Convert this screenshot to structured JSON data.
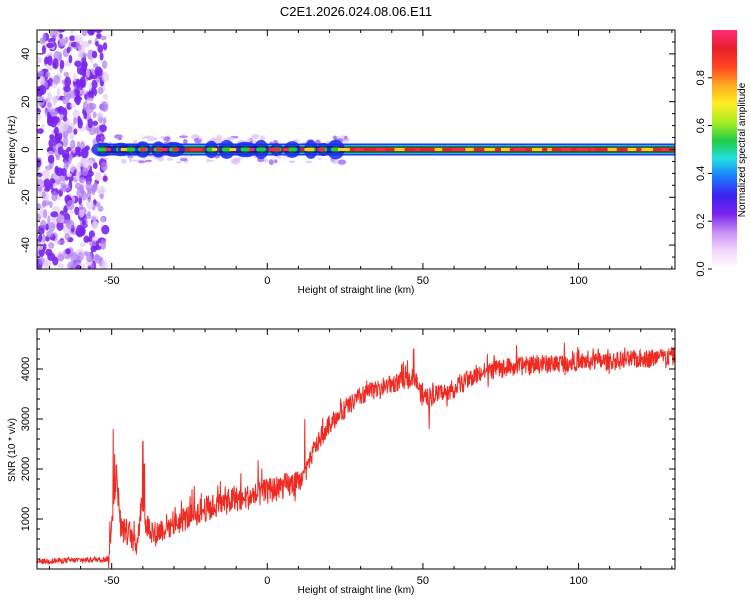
{
  "title": "C2E1.2026.024.08.06.E11",
  "colors": {
    "snr_line": "#ee2a22",
    "track_core": "#e8202a",
    "track_outer": "#22cc44",
    "track_edge": "#1a2aee",
    "noise": "#7a22ee"
  },
  "chart_data": [
    {
      "type": "heatmap",
      "name": "spectrogram",
      "title": "C2E1.2026.024.08.06.E11",
      "xlabel": "Height of straight line (km)",
      "ylabel": "Frequency (Hz)",
      "xlim": [
        -74,
        131
      ],
      "ylim": [
        -50,
        50
      ],
      "xticks": [
        -50,
        0,
        50,
        100
      ],
      "xtick_labels": [
        "-50",
        "0",
        "50",
        "100"
      ],
      "yticks": [
        -40,
        -20,
        0,
        20,
        40
      ],
      "ytick_labels": [
        "-40",
        "-20",
        "0",
        "20",
        "40"
      ],
      "noise_region_km": [
        -74,
        -52
      ],
      "signal_frequency_hz": 0,
      "signal_start_km": -54,
      "colorbar": {
        "label": "Normalized spectral amplitude",
        "range": [
          0,
          1
        ],
        "ticks": [
          0.0,
          0.2,
          0.4,
          0.6,
          0.8
        ],
        "tick_labels": [
          "0.0",
          "0.2",
          "0.4",
          "0.6",
          "0.8"
        ],
        "colormap": [
          "#ffffff",
          "#f2d7fa",
          "#c890f5",
          "#7a22ee",
          "#3b22ee",
          "#1a7aff",
          "#22e0e0",
          "#22cc44",
          "#aaee22",
          "#ffee22",
          "#ffaa22",
          "#ff4422",
          "#e8202a",
          "#ff2a7a"
        ]
      }
    },
    {
      "type": "line",
      "name": "snr",
      "title": "",
      "xlabel": "Height of straight line (km)",
      "ylabel": "SNR (10 * v/v)",
      "xlim": [
        -74,
        131
      ],
      "ylim": [
        0,
        4800
      ],
      "xticks": [
        -50,
        0,
        50,
        100
      ],
      "xtick_labels": [
        "-50",
        "0",
        "50",
        "100"
      ],
      "yticks": [
        1000,
        2000,
        3000,
        4000
      ],
      "ytick_labels": [
        "1000",
        "2000",
        "3000",
        "4000"
      ],
      "trend": {
        "x": [
          -74,
          -51,
          -50,
          -48.5,
          -47,
          -44,
          -42,
          -40,
          -39,
          -36,
          -34,
          -30,
          -25,
          -20,
          -15,
          -10,
          -5,
          0,
          5,
          10,
          13,
          15,
          18,
          20,
          25,
          30,
          35,
          40,
          45,
          47,
          50,
          55,
          60,
          65,
          70,
          80,
          90,
          100,
          110,
          120,
          131
        ],
        "y": [
          150,
          200,
          900,
          1900,
          800,
          700,
          500,
          1400,
          900,
          700,
          800,
          900,
          1050,
          1200,
          1300,
          1400,
          1450,
          1550,
          1650,
          1700,
          2000,
          2400,
          2700,
          2900,
          3200,
          3450,
          3600,
          3700,
          3800,
          3900,
          3400,
          3500,
          3600,
          3800,
          3950,
          4050,
          4100,
          4150,
          4150,
          4200,
          4250
        ]
      },
      "spikes": [
        {
          "x": -49.5,
          "y": 2800
        },
        {
          "x": -49,
          "y": 2300
        },
        {
          "x": -40,
          "y": 2550
        },
        {
          "x": -39.5,
          "y": 2100
        },
        {
          "x": 12,
          "y": 3000
        },
        {
          "x": 47,
          "y": 4400
        },
        {
          "x": 52,
          "y": 2800
        }
      ]
    }
  ]
}
